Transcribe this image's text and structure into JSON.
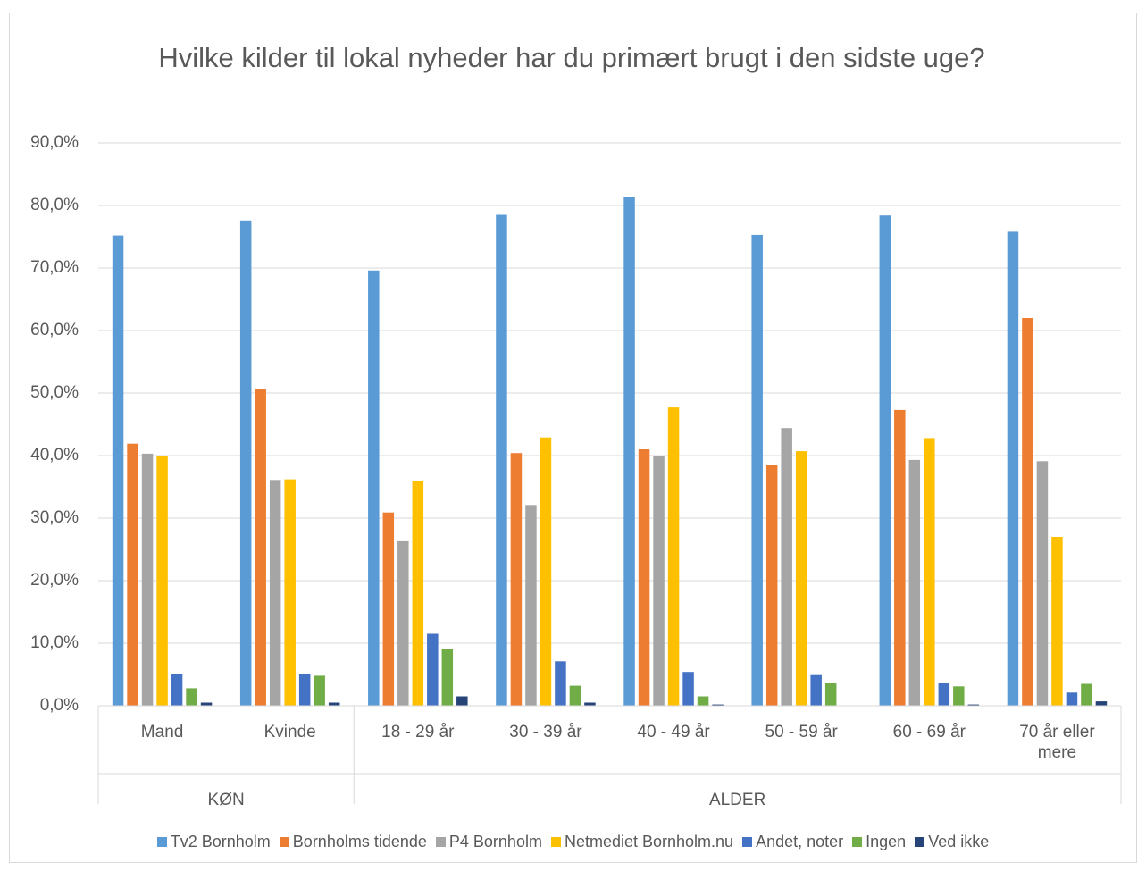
{
  "chart_data": {
    "type": "bar",
    "title": "Hvilke kilder til lokal nyheder har du primært brugt i den sidste uge?",
    "categories": [
      "Mand",
      "Kvinde",
      "18 - 29 år",
      "30 - 39 år",
      "40 - 49 år",
      "50 - 59 år",
      "60 - 69 år",
      "70 år eller mere"
    ],
    "groups": [
      {
        "label": "KØN",
        "size": 2
      },
      {
        "label": "ALDER",
        "size": 6
      }
    ],
    "series": [
      {
        "name": "Tv2 Bornholm",
        "color": "#5b9bd5",
        "values": [
          75.2,
          77.6,
          69.6,
          78.5,
          81.4,
          75.3,
          78.4,
          75.8
        ]
      },
      {
        "name": "Bornholms tidende",
        "color": "#ed7d31",
        "values": [
          41.9,
          50.7,
          30.9,
          40.4,
          41.0,
          38.5,
          47.3,
          62.0
        ]
      },
      {
        "name": "P4 Bornholm",
        "color": "#a5a5a5",
        "values": [
          40.3,
          36.1,
          26.3,
          32.1,
          39.9,
          44.4,
          39.3,
          39.1
        ]
      },
      {
        "name": "Netmediet Bornholm.nu",
        "color": "#ffc000",
        "values": [
          39.9,
          36.2,
          36.0,
          42.9,
          47.7,
          40.7,
          42.8,
          27.0
        ]
      },
      {
        "name": "Andet, noter",
        "color": "#4472c4",
        "values": [
          5.1,
          5.1,
          11.5,
          7.1,
          5.4,
          4.9,
          3.7,
          2.1
        ]
      },
      {
        "name": "Ingen",
        "color": "#70ad47",
        "values": [
          2.8,
          4.8,
          9.1,
          3.2,
          1.5,
          3.6,
          3.1,
          3.5
        ]
      },
      {
        "name": "Ved ikke",
        "color": "#264478",
        "values": [
          0.5,
          0.5,
          1.5,
          0.5,
          0.2,
          0.0,
          0.2,
          0.7
        ]
      }
    ],
    "ylim": [
      0,
      90
    ],
    "yticks": [
      {
        "value": 0,
        "label": "0,0%"
      },
      {
        "value": 10,
        "label": "10,0%"
      },
      {
        "value": 20,
        "label": "20,0%"
      },
      {
        "value": 30,
        "label": "30,0%"
      },
      {
        "value": 40,
        "label": "40,0%"
      },
      {
        "value": 50,
        "label": "50,0%"
      },
      {
        "value": 60,
        "label": "60,0%"
      },
      {
        "value": 70,
        "label": "70,0%"
      },
      {
        "value": 80,
        "label": "80,0%"
      },
      {
        "value": 90,
        "label": "90,0%"
      }
    ],
    "grid": true,
    "legend": "bottom"
  }
}
